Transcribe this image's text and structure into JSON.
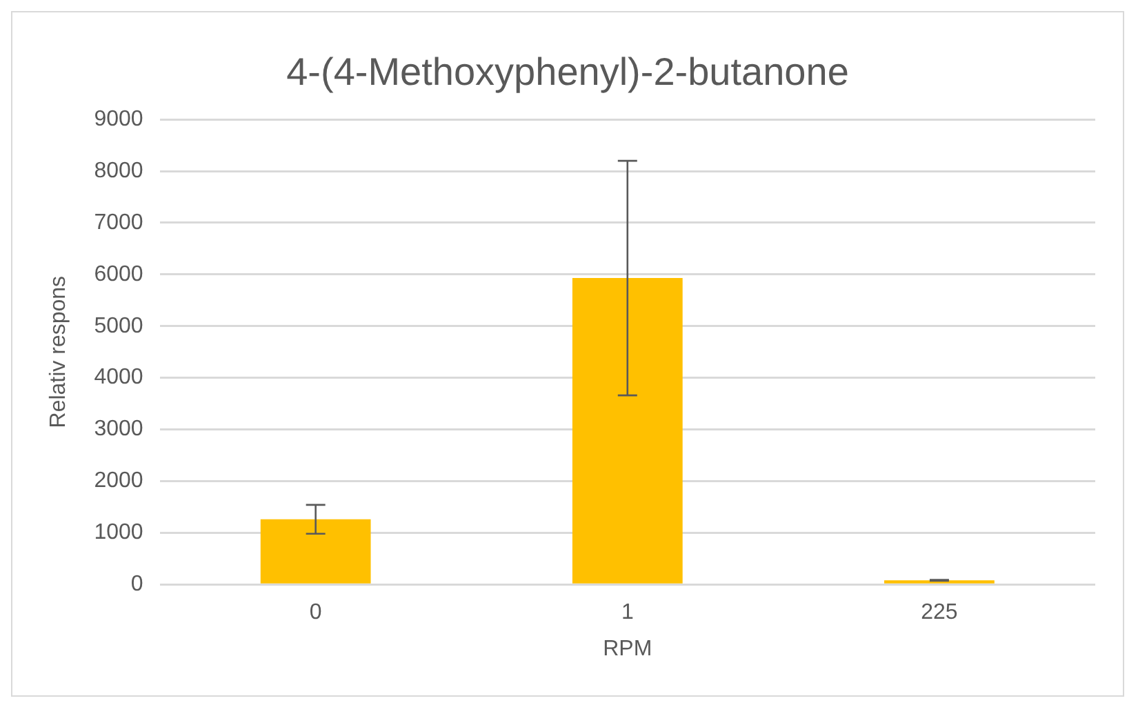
{
  "chart_data": {
    "type": "bar",
    "title": "4-(4-Methoxyphenyl)-2-butanone",
    "xlabel": "RPM",
    "ylabel": "Relativ respons",
    "categories": [
      "0",
      "1",
      "225"
    ],
    "values": [
      1260,
      5930,
      80
    ],
    "errors": [
      280,
      2270,
      10
    ],
    "color": "#ffc000",
    "ylim": [
      0,
      9000
    ],
    "yticks": [
      0,
      1000,
      2000,
      3000,
      4000,
      5000,
      6000,
      7000,
      8000,
      9000
    ],
    "grid": "y"
  }
}
